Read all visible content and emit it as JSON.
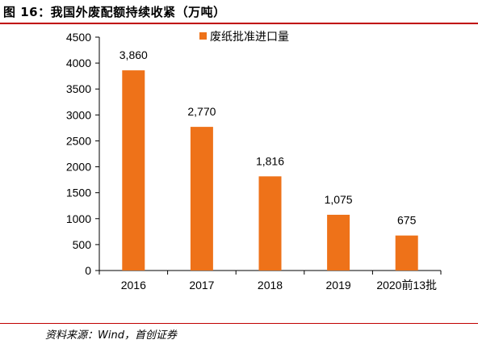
{
  "figure": {
    "title": "图 16：我国外废配额持续收紧（万吨）",
    "source": "资料来源：Wind，首创证券"
  },
  "colors": {
    "bar": "#ee7219",
    "rule": "#c00000",
    "axis": "#000000"
  },
  "chart_data": {
    "type": "bar",
    "title": "",
    "xlabel": "",
    "ylabel": "",
    "categories": [
      "2016",
      "2017",
      "2018",
      "2019",
      "2020前13批"
    ],
    "series": [
      {
        "name": "废纸批准进口量",
        "values": [
          3860,
          2770,
          1816,
          1075,
          675
        ]
      }
    ],
    "data_labels": [
      "3,860",
      "2,770",
      "1,816",
      "1,075",
      "675"
    ],
    "ylim": [
      0,
      4500
    ],
    "yticks": [
      0,
      500,
      1000,
      1500,
      2000,
      2500,
      3000,
      3500,
      4000,
      4500
    ],
    "grid": false,
    "legend": "top-center"
  }
}
